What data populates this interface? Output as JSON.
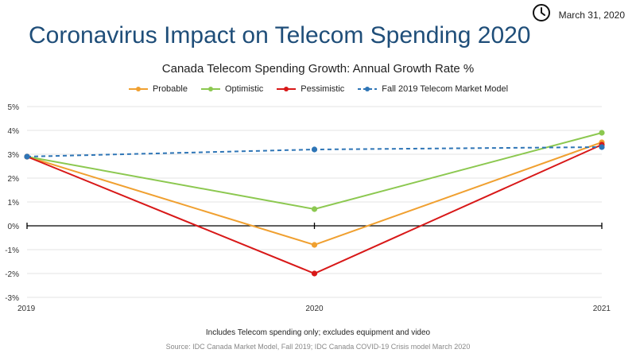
{
  "header": {
    "date": "March 31, 2020",
    "icon": "clock-icon",
    "title": "Coronavirus Impact on Telecom Spending 2020"
  },
  "footnote": "Includes Telecom spending only; excludes equipment and video",
  "source": "Source: IDC Canada Market Model, Fall 2019; IDC Canada COVID-19 Crisis model March 2020",
  "chart_data": {
    "type": "line",
    "title": "Canada Telecom Spending Growth: Annual Growth Rate %",
    "xlabel": "",
    "ylabel": "",
    "x": [
      "2019",
      "2020",
      "2021"
    ],
    "ylim": [
      -3,
      5
    ],
    "y_ticks": [
      "5%",
      "4%",
      "3%",
      "2%",
      "1%",
      "0%",
      "-1%",
      "-2%",
      "-3%"
    ],
    "grid": true,
    "legend_position": "top",
    "series": [
      {
        "name": "Probable",
        "values": [
          2.9,
          -0.8,
          3.5
        ],
        "color": "#f0a030",
        "dashed": false
      },
      {
        "name": "Optimistic",
        "values": [
          2.9,
          0.7,
          3.9
        ],
        "color": "#8cc850",
        "dashed": false
      },
      {
        "name": "Pessimistic",
        "values": [
          2.9,
          -2.0,
          3.4
        ],
        "color": "#d81818",
        "dashed": false
      },
      {
        "name": "Fall 2019 Telecom Market Model",
        "values": [
          2.9,
          3.2,
          3.3
        ],
        "color": "#2e75b6",
        "dashed": true
      }
    ]
  }
}
